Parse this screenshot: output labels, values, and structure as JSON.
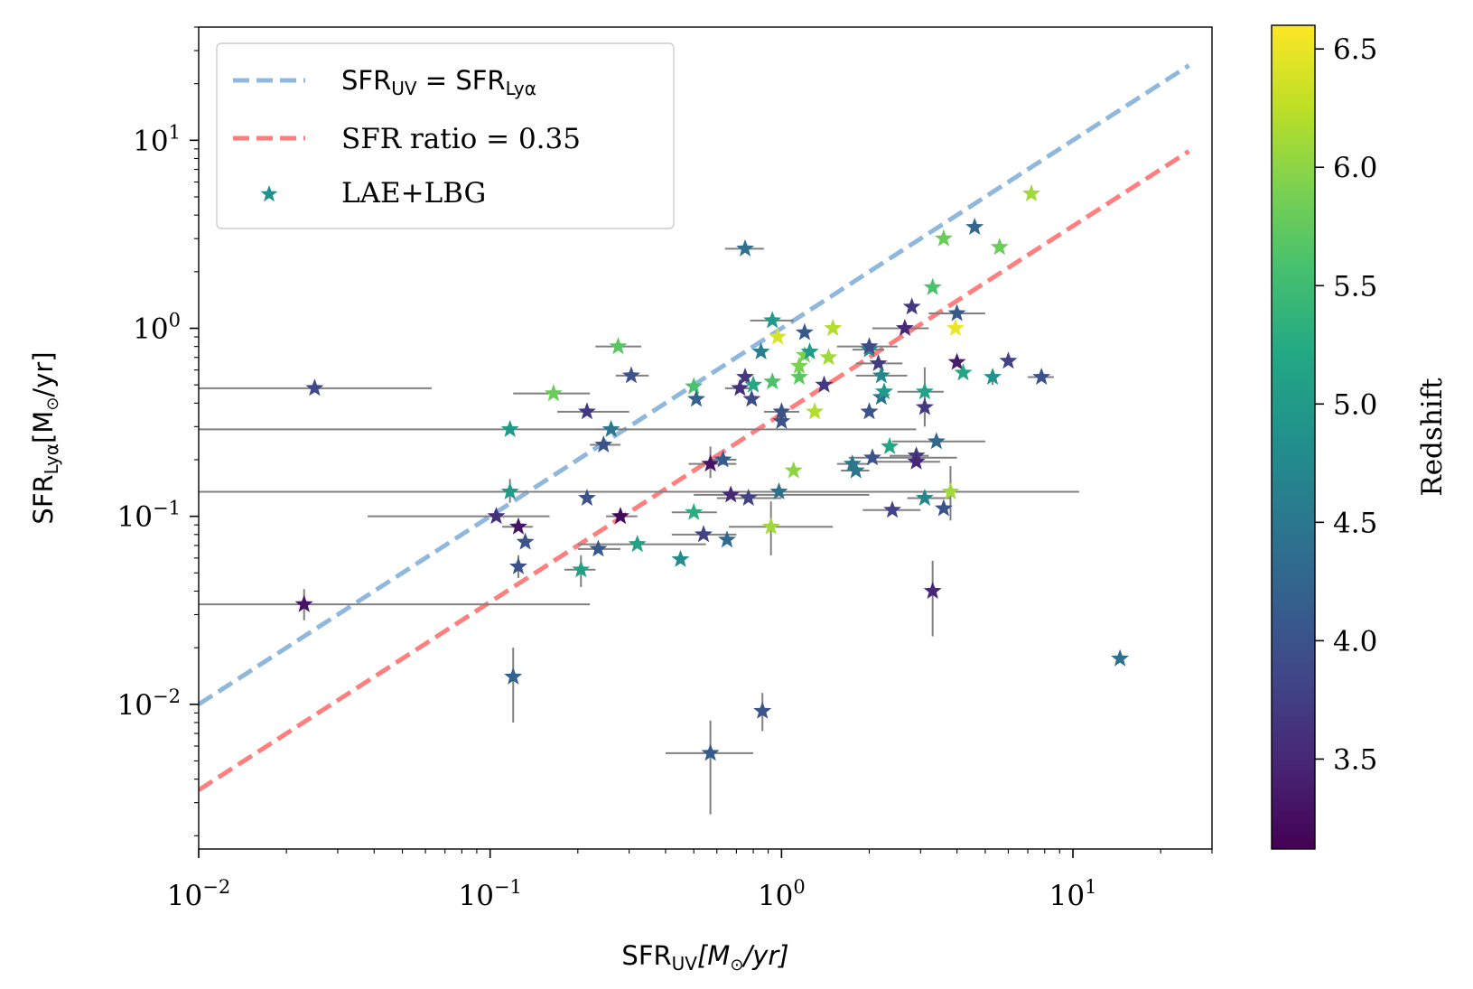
{
  "chart_data": {
    "type": "scatter",
    "xscale": "log",
    "yscale": "log",
    "xlim": [
      0.01,
      30
    ],
    "ylim": [
      0.0017,
      40
    ],
    "xlabel": {
      "main": "SFR",
      "sub": "UV",
      "unit": "[M",
      "unit_tail": "/yr]"
    },
    "ylabel": {
      "main": "SFR",
      "sub": "Lyα",
      "unit": "[M",
      "unit_tail": "/yr]"
    },
    "x_ticks": [
      {
        "value": 0.01,
        "base": "10",
        "exp": "−2"
      },
      {
        "value": 0.1,
        "base": "10",
        "exp": "−1"
      },
      {
        "value": 1,
        "base": "10",
        "exp": "0"
      },
      {
        "value": 10,
        "base": "10",
        "exp": "1"
      }
    ],
    "y_ticks": [
      {
        "value": 0.01,
        "base": "10",
        "exp": "−2"
      },
      {
        "value": 0.1,
        "base": "10",
        "exp": "−1"
      },
      {
        "value": 1,
        "base": "10",
        "exp": "0"
      },
      {
        "value": 10,
        "base": "10",
        "exp": "1"
      }
    ],
    "lines": [
      {
        "name": "SFR_UV = SFR_Lyα",
        "ratio": 1.0,
        "color": "#8fb8dc",
        "x_range": [
          0.01,
          25
        ]
      },
      {
        "name": "SFR ratio = 0.35",
        "ratio": 0.35,
        "color": "#ff7f7f",
        "x_range": [
          0.01,
          25
        ]
      }
    ],
    "legend": {
      "placement": "top-left",
      "entries": [
        {
          "kind": "line",
          "color": "#8fb8dc",
          "label_main": "SFR",
          "label_sub": "UV",
          "label_eq": " = ",
          "label_main2": "SFR",
          "label_sub2": "Lyα"
        },
        {
          "kind": "line",
          "color": "#ff7f7f",
          "label_text": "SFR ratio = 0.35"
        },
        {
          "kind": "star",
          "color": "#21918c",
          "label_text": "LAE+LBG"
        }
      ]
    },
    "colorbar": {
      "label": "Redshift",
      "vmin": 3.12,
      "vmax": 6.6,
      "colormap": "viridis",
      "ticks": [
        {
          "value": 3.5,
          "label": "3.5"
        },
        {
          "value": 4.0,
          "label": "4.0"
        },
        {
          "value": 4.5,
          "label": "4.5"
        },
        {
          "value": 5.0,
          "label": "5.0"
        },
        {
          "value": 5.5,
          "label": "5.5"
        },
        {
          "value": 6.0,
          "label": "6.0"
        },
        {
          "value": 6.5,
          "label": "6.5"
        }
      ]
    },
    "series": [
      {
        "name": "LAE+LBG",
        "points": [
          {
            "x": 0.025,
            "y": 0.48,
            "z": 3.9,
            "xerr": [
              0.01,
              0.063
            ]
          },
          {
            "x": 0.023,
            "y": 0.034,
            "z": 3.3,
            "xerr": [
              0.01,
              0.22
            ],
            "yerr": [
              0.028,
              0.041
            ]
          },
          {
            "x": 0.117,
            "y": 0.29,
            "z": 5.0,
            "xerr": [
              0.01,
              2.9
            ]
          },
          {
            "x": 0.117,
            "y": 0.135,
            "z": 5.0,
            "xerr": [
              0.01,
              10.5
            ],
            "yerr": [
              0.118,
              0.158
            ]
          },
          {
            "x": 0.105,
            "y": 0.1,
            "z": 3.6,
            "xerr": [
              0.038,
              0.16
            ]
          },
          {
            "x": 0.125,
            "y": 0.088,
            "z": 3.3,
            "xerr": [
              0.11,
              0.14
            ]
          },
          {
            "x": 0.132,
            "y": 0.073,
            "z": 4.0
          },
          {
            "x": 0.125,
            "y": 0.054,
            "z": 4.0,
            "yerr": [
              0.047,
              0.062
            ]
          },
          {
            "x": 0.12,
            "y": 0.014,
            "z": 4.2,
            "yerr": [
              0.008,
              0.02
            ]
          },
          {
            "x": 0.165,
            "y": 0.45,
            "z": 5.8,
            "xerr": [
              0.12,
              0.22
            ]
          },
          {
            "x": 0.215,
            "y": 0.36,
            "z": 3.7,
            "xerr": [
              0.17,
              0.3
            ]
          },
          {
            "x": 0.215,
            "y": 0.125,
            "z": 4.0
          },
          {
            "x": 0.205,
            "y": 0.052,
            "z": 5.1,
            "xerr": [
              0.18,
              0.23
            ],
            "yerr": [
              0.042,
              0.062
            ]
          },
          {
            "x": 0.235,
            "y": 0.067,
            "z": 4.1,
            "xerr": [
              0.2,
              0.28
            ]
          },
          {
            "x": 0.245,
            "y": 0.24,
            "z": 4.0,
            "xerr": [
              0.22,
              0.28
            ]
          },
          {
            "x": 0.26,
            "y": 0.29,
            "z": 4.5,
            "xerr": [
              0.23,
              0.3
            ]
          },
          {
            "x": 0.275,
            "y": 0.8,
            "z": 5.7,
            "xerr": [
              0.23,
              0.33
            ]
          },
          {
            "x": 0.305,
            "y": 0.56,
            "z": 4.0,
            "xerr": [
              0.27,
              0.35
            ]
          },
          {
            "x": 0.28,
            "y": 0.1,
            "z": 3.2,
            "xerr": [
              0.25,
              0.32
            ]
          },
          {
            "x": 0.32,
            "y": 0.071,
            "z": 5.1,
            "xerr": [
              0.2,
              0.55
            ]
          },
          {
            "x": 0.45,
            "y": 0.059,
            "z": 4.8
          },
          {
            "x": 0.5,
            "y": 0.49,
            "z": 5.6
          },
          {
            "x": 0.51,
            "y": 0.42,
            "z": 4.2
          },
          {
            "x": 0.5,
            "y": 0.105,
            "z": 5.3,
            "xerr": [
              0.42,
              0.6
            ]
          },
          {
            "x": 0.54,
            "y": 0.08,
            "z": 3.8,
            "xerr": [
              0.42,
              0.7
            ]
          },
          {
            "x": 0.57,
            "y": 0.19,
            "z": 3.3,
            "xerr": [
              0.48,
              0.7
            ],
            "yerr": [
              0.16,
              0.235
            ]
          },
          {
            "x": 0.63,
            "y": 0.2,
            "z": 4.1,
            "xerr": [
              0.57,
              0.7
            ]
          },
          {
            "x": 0.65,
            "y": 0.075,
            "z": 4.3
          },
          {
            "x": 0.67,
            "y": 0.13,
            "z": 3.5,
            "xerr": [
              0.5,
              2.0
            ]
          },
          {
            "x": 0.57,
            "y": 0.0055,
            "z": 4.1,
            "xerr": [
              0.4,
              0.8
            ],
            "yerr": [
              0.0026,
              0.0082
            ]
          },
          {
            "x": 0.72,
            "y": 0.48,
            "z": 3.6,
            "xerr": [
              0.64,
              0.8
            ]
          },
          {
            "x": 0.75,
            "y": 2.65,
            "z": 4.4,
            "xerr": [
              0.64,
              0.87
            ]
          },
          {
            "x": 0.75,
            "y": 0.55,
            "z": 3.7
          },
          {
            "x": 0.79,
            "y": 0.42,
            "z": 3.9
          },
          {
            "x": 0.8,
            "y": 0.5,
            "z": 5.2
          },
          {
            "x": 0.77,
            "y": 0.125,
            "z": 3.8,
            "xerr": [
              0.6,
              1.0
            ]
          },
          {
            "x": 0.85,
            "y": 0.75,
            "z": 4.6
          },
          {
            "x": 0.86,
            "y": 0.0092,
            "z": 4.0,
            "yerr": [
              0.0072,
              0.0115
            ]
          },
          {
            "x": 0.93,
            "y": 1.1,
            "z": 5.0,
            "xerr": [
              0.78,
              1.1
            ]
          },
          {
            "x": 0.97,
            "y": 0.9,
            "z": 6.4
          },
          {
            "x": 0.93,
            "y": 0.52,
            "z": 5.6
          },
          {
            "x": 0.92,
            "y": 0.088,
            "z": 6.1,
            "xerr": [
              0.66,
              1.5
            ],
            "yerr": [
              0.062,
              0.12
            ]
          },
          {
            "x": 1.0,
            "y": 0.36,
            "z": 4.0,
            "xerr": [
              0.87,
              1.15
            ]
          },
          {
            "x": 1.0,
            "y": 0.32,
            "z": 4.0
          },
          {
            "x": 0.98,
            "y": 0.135,
            "z": 4.4
          },
          {
            "x": 1.1,
            "y": 0.175,
            "z": 6.0
          },
          {
            "x": 1.15,
            "y": 0.55,
            "z": 5.7
          },
          {
            "x": 1.15,
            "y": 0.63,
            "z": 5.9
          },
          {
            "x": 1.2,
            "y": 0.95,
            "z": 4.1
          },
          {
            "x": 1.2,
            "y": 0.72,
            "z": 5.9
          },
          {
            "x": 1.25,
            "y": 0.75,
            "z": 5.0
          },
          {
            "x": 1.3,
            "y": 0.36,
            "z": 6.2
          },
          {
            "x": 1.4,
            "y": 0.5,
            "z": 3.7
          },
          {
            "x": 1.45,
            "y": 0.7,
            "z": 6.1
          },
          {
            "x": 1.5,
            "y": 1.0,
            "z": 6.2
          },
          {
            "x": 1.75,
            "y": 0.19,
            "z": 4.5,
            "xerr": [
              1.55,
              2.0
            ]
          },
          {
            "x": 1.8,
            "y": 0.175,
            "z": 4.5,
            "xerr": [
              1.6,
              2.0
            ]
          },
          {
            "x": 2.0,
            "y": 0.77,
            "z": 4.7,
            "xerr": [
              1.75,
              2.25
            ]
          },
          {
            "x": 2.0,
            "y": 0.8,
            "z": 3.9,
            "xerr": [
              1.55,
              2.5
            ]
          },
          {
            "x": 2.0,
            "y": 0.36,
            "z": 4.0
          },
          {
            "x": 2.05,
            "y": 0.205,
            "z": 4.0,
            "xerr": [
              1.7,
              4.0
            ]
          },
          {
            "x": 2.15,
            "y": 0.65,
            "z": 3.7,
            "xerr": [
              1.8,
              2.6
            ]
          },
          {
            "x": 2.2,
            "y": 0.56,
            "z": 4.7,
            "xerr": [
              1.8,
              2.7
            ]
          },
          {
            "x": 2.2,
            "y": 0.43,
            "z": 4.4
          },
          {
            "x": 2.25,
            "y": 0.46,
            "z": 5.0
          },
          {
            "x": 2.35,
            "y": 0.235,
            "z": 5.2
          },
          {
            "x": 2.4,
            "y": 0.108,
            "z": 3.8,
            "xerr": [
              1.9,
              3.0
            ]
          },
          {
            "x": 2.65,
            "y": 1.0,
            "z": 3.5,
            "xerr": [
              2.05,
              3.2
            ]
          },
          {
            "x": 2.8,
            "y": 1.3,
            "z": 3.7
          },
          {
            "x": 2.9,
            "y": 0.21,
            "z": 3.7,
            "xerr": [
              2.35,
              3.2
            ]
          },
          {
            "x": 2.9,
            "y": 0.195,
            "z": 3.5,
            "xerr": [
              2.0,
              3.5
            ]
          },
          {
            "x": 3.1,
            "y": 0.46,
            "z": 5.1,
            "xerr": [
              2.5,
              3.6
            ],
            "yerr": [
              0.32,
              0.62
            ]
          },
          {
            "x": 3.1,
            "y": 0.38,
            "z": 3.7,
            "yerr": [
              0.3,
              0.48
            ]
          },
          {
            "x": 3.1,
            "y": 0.125,
            "z": 4.7,
            "xerr": [
              2.7,
              3.8
            ]
          },
          {
            "x": 3.3,
            "y": 1.65,
            "z": 5.6
          },
          {
            "x": 3.3,
            "y": 0.04,
            "z": 3.5,
            "yerr": [
              0.023,
              0.058
            ]
          },
          {
            "x": 3.4,
            "y": 0.25,
            "z": 4.3,
            "xerr": [
              2.4,
              5.0
            ]
          },
          {
            "x": 3.6,
            "y": 3.0,
            "z": 5.8
          },
          {
            "x": 3.6,
            "y": 0.11,
            "z": 4.0
          },
          {
            "x": 3.8,
            "y": 0.135,
            "z": 6.1,
            "xerr": [
              2.9,
              4.6
            ],
            "yerr": [
              0.095,
              0.185
            ]
          },
          {
            "x": 3.95,
            "y": 1.0,
            "z": 6.5
          },
          {
            "x": 4.0,
            "y": 0.66,
            "z": 3.4
          },
          {
            "x": 4.0,
            "y": 1.2,
            "z": 4.1,
            "xerr": [
              3.2,
              5.0
            ]
          },
          {
            "x": 4.2,
            "y": 0.58,
            "z": 5.2
          },
          {
            "x": 4.6,
            "y": 3.45,
            "z": 4.3
          },
          {
            "x": 5.3,
            "y": 0.55,
            "z": 4.9,
            "yerr": [
              0.5,
              0.6
            ]
          },
          {
            "x": 5.6,
            "y": 2.7,
            "z": 5.8
          },
          {
            "x": 6.0,
            "y": 0.67,
            "z": 3.8
          },
          {
            "x": 7.2,
            "y": 5.2,
            "z": 6.1
          },
          {
            "x": 7.8,
            "y": 0.55,
            "z": 4.0,
            "xerr": [
              7.0,
              8.6
            ]
          },
          {
            "x": 14.5,
            "y": 0.0175,
            "z": 4.4
          }
        ]
      }
    ]
  }
}
